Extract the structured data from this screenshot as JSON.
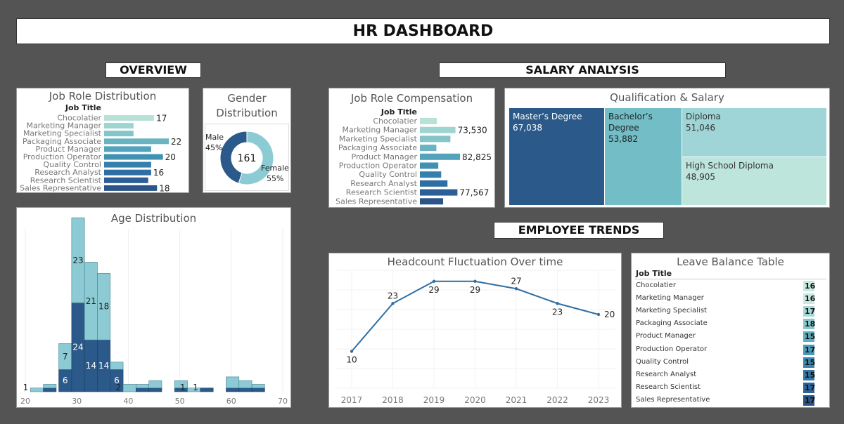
{
  "header": {
    "title": "HR DASHBOARD"
  },
  "sections": {
    "overview": "OVERVIEW",
    "salary": "SALARY ANALYSIS",
    "trends": "EMPLOYEE TRENDS"
  },
  "colors": [
    "#b8e2d8",
    "#9fd5d1",
    "#85c5c9",
    "#6ab4c2",
    "#52a3bb",
    "#4191b3",
    "#357fac",
    "#2f6ea3",
    "#2c5f97",
    "#2b5588"
  ],
  "job_roles": {
    "title": "Job Role Distribution",
    "field_label": "Job Title",
    "categories": [
      "Chocolatier",
      "Marketing Manager",
      "Marketing Specialist",
      "Packaging Associate",
      "Product Manager",
      "Production Operator",
      "Quality Control",
      "Research Analyst",
      "Research Scientist",
      "Sales Representative"
    ],
    "values": [
      17,
      10,
      10,
      22,
      16,
      20,
      16,
      16,
      15,
      18
    ],
    "labels": [
      "17",
      "",
      "",
      "22",
      "",
      "20",
      "",
      "16",
      "",
      "18"
    ]
  },
  "gender": {
    "title_line1": "Gender",
    "title_line2": "Distribution",
    "total": "161",
    "slices": [
      {
        "name": "Male",
        "pct": "45%",
        "value": 45,
        "color": "#2b5a8a"
      },
      {
        "name": "Female",
        "pct": "55%",
        "value": 55,
        "color": "#8ccbd3"
      }
    ]
  },
  "age": {
    "title": "Age Distribution",
    "x_ticks": [
      20,
      30,
      40,
      50,
      60,
      70
    ],
    "xlim": [
      20,
      70
    ],
    "ylim": [
      0,
      44
    ],
    "bin_width": 2.5,
    "light_color": "#8ccbd3",
    "dark_color": "#2b5a8a",
    "bins": [
      {
        "start": 21,
        "light": 1,
        "dark": 0,
        "label_top": "1",
        "label_bottom": ""
      },
      {
        "start": 23.5,
        "light": 1,
        "dark": 1,
        "label_top": "",
        "label_bottom": ""
      },
      {
        "start": 26.5,
        "light": 7,
        "dark": 6,
        "label_top": "7",
        "label_bottom": "6"
      },
      {
        "start": 29,
        "light": 23,
        "dark": 24,
        "label_top": "23",
        "label_bottom": "24"
      },
      {
        "start": 31.5,
        "light": 21,
        "dark": 14,
        "label_top": "21",
        "label_bottom": "14"
      },
      {
        "start": 34,
        "light": 18,
        "dark": 14,
        "label_top": "18",
        "label_bottom": "14"
      },
      {
        "start": 36.5,
        "light": 2,
        "dark": 6,
        "label_top": "",
        "label_bottom": "6"
      },
      {
        "start": 39,
        "light": 2,
        "dark": 0,
        "label_top": "2",
        "label_bottom": ""
      },
      {
        "start": 41.5,
        "light": 1,
        "dark": 1,
        "label_top": "",
        "label_bottom": ""
      },
      {
        "start": 44,
        "light": 2,
        "dark": 1,
        "label_top": "",
        "label_bottom": ""
      },
      {
        "start": 49,
        "light": 2,
        "dark": 1,
        "label_top": "",
        "label_bottom": ""
      },
      {
        "start": 51.5,
        "light": 1,
        "dark": 0,
        "label_top": "1",
        "label_bottom": ""
      },
      {
        "start": 54,
        "light": 0,
        "dark": 1,
        "label_top": "1",
        "label_bottom": ""
      },
      {
        "start": 59,
        "light": 3,
        "dark": 1,
        "label_top": "",
        "label_bottom": ""
      },
      {
        "start": 61.5,
        "light": 2,
        "dark": 1,
        "label_top": "",
        "label_bottom": ""
      },
      {
        "start": 64,
        "light": 1,
        "dark": 1,
        "label_top": "",
        "label_bottom": ""
      }
    ]
  },
  "compensation": {
    "title": "Job Role Compensation",
    "field_label": "Job Title",
    "categories": [
      "Chocolatier",
      "Marketing Manager",
      "Marketing Specialist",
      "Packaging Associate",
      "Product Manager",
      "Production Operator",
      "Quality Control",
      "Research Analyst",
      "Research Scientist",
      "Sales Representative"
    ],
    "values": [
      35000,
      73530,
      63000,
      34000,
      82825,
      38000,
      44000,
      57000,
      77567,
      48000
    ],
    "labels": [
      "",
      "73,530",
      "",
      "",
      "82,825",
      "",
      "",
      "",
      "77,567",
      ""
    ]
  },
  "qualification": {
    "title": "Qualification & Salary",
    "items": [
      {
        "name": "Master’s Degree",
        "salary": "67,038",
        "color": "#2b5a8a"
      },
      {
        "name": "Bachelor’s Degree",
        "salary": "53,882",
        "color": "#72bdc6"
      },
      {
        "name": "Diploma",
        "salary": "51,046",
        "color": "#9fd5d6"
      },
      {
        "name": "High School Diploma",
        "salary": "48,905",
        "color": "#bde5dc"
      }
    ]
  },
  "headcount": {
    "title": "Headcount Fluctuation Over time",
    "years": [
      "2017",
      "2018",
      "2019",
      "2020",
      "2021",
      "2022",
      "2023"
    ],
    "values": [
      10,
      23,
      29,
      29,
      27,
      23,
      20
    ],
    "labels": [
      "10",
      "23",
      "29",
      "29",
      "27",
      "23",
      "20"
    ],
    "ylim": [
      0,
      32
    ],
    "color": "#2f6ea3"
  },
  "leave": {
    "title": "Leave Balance Table",
    "field_label": "Job Title",
    "rows": [
      {
        "role": "Chocolatier",
        "value": "16",
        "color": "#c6e9e0"
      },
      {
        "role": "Marketing Manager",
        "value": "16",
        "color": "#c6e9e0"
      },
      {
        "role": "Marketing Specialist",
        "value": "17",
        "color": "#a6d9d6"
      },
      {
        "role": "Packaging Associate",
        "value": "18",
        "color": "#86c8cc"
      },
      {
        "role": "Product Manager",
        "value": "15",
        "color": "#5eacbf"
      },
      {
        "role": "Production Operator",
        "value": "17",
        "color": "#4b9ab8"
      },
      {
        "role": "Quality Control",
        "value": "15",
        "color": "#3b86ae"
      },
      {
        "role": "Research Analyst",
        "value": "15",
        "color": "#3276a6"
      },
      {
        "role": "Research Scientist",
        "value": "17",
        "color": "#2d659a"
      },
      {
        "role": "Sales Representative",
        "value": "17",
        "color": "#2b5588"
      }
    ]
  }
}
